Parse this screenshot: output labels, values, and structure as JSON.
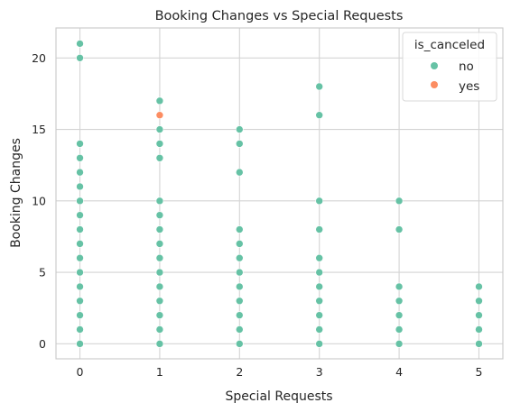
{
  "chart_data": {
    "type": "scatter",
    "title": "Booking Changes vs Special Requests",
    "xlabel": "Special Requests",
    "ylabel": "Booking Changes",
    "xlim": [
      -0.3,
      5.3
    ],
    "ylim": [
      -1.05,
      22.1
    ],
    "xticks": [
      0,
      1,
      2,
      3,
      4,
      5
    ],
    "yticks": [
      0,
      5,
      10,
      15,
      20
    ],
    "grid": true,
    "legend": {
      "title": "is_canceled",
      "placement": "top-right"
    },
    "series": [
      {
        "name": "no",
        "color": "#66c2a5",
        "points": [
          [
            0,
            0
          ],
          [
            0,
            1
          ],
          [
            0,
            2
          ],
          [
            0,
            3
          ],
          [
            0,
            4
          ],
          [
            0,
            5
          ],
          [
            0,
            6
          ],
          [
            0,
            7
          ],
          [
            0,
            8
          ],
          [
            0,
            9
          ],
          [
            0,
            10
          ],
          [
            0,
            11
          ],
          [
            0,
            12
          ],
          [
            0,
            13
          ],
          [
            0,
            14
          ],
          [
            0,
            20
          ],
          [
            0,
            21
          ],
          [
            1,
            0
          ],
          [
            1,
            1
          ],
          [
            1,
            2
          ],
          [
            1,
            3
          ],
          [
            1,
            4
          ],
          [
            1,
            5
          ],
          [
            1,
            6
          ],
          [
            1,
            7
          ],
          [
            1,
            8
          ],
          [
            1,
            9
          ],
          [
            1,
            10
          ],
          [
            1,
            13
          ],
          [
            1,
            14
          ],
          [
            1,
            15
          ],
          [
            1,
            17
          ],
          [
            2,
            0
          ],
          [
            2,
            1
          ],
          [
            2,
            2
          ],
          [
            2,
            3
          ],
          [
            2,
            4
          ],
          [
            2,
            5
          ],
          [
            2,
            6
          ],
          [
            2,
            7
          ],
          [
            2,
            8
          ],
          [
            2,
            12
          ],
          [
            2,
            14
          ],
          [
            2,
            15
          ],
          [
            3,
            0
          ],
          [
            3,
            1
          ],
          [
            3,
            2
          ],
          [
            3,
            3
          ],
          [
            3,
            4
          ],
          [
            3,
            5
          ],
          [
            3,
            6
          ],
          [
            3,
            8
          ],
          [
            3,
            10
          ],
          [
            3,
            16
          ],
          [
            3,
            18
          ],
          [
            4,
            0
          ],
          [
            4,
            1
          ],
          [
            4,
            2
          ],
          [
            4,
            3
          ],
          [
            4,
            4
          ],
          [
            4,
            8
          ],
          [
            4,
            10
          ],
          [
            5,
            0
          ],
          [
            5,
            1
          ],
          [
            5,
            2
          ],
          [
            5,
            3
          ],
          [
            5,
            4
          ]
        ]
      },
      {
        "name": "yes",
        "color": "#fc8d62",
        "points": [
          [
            1,
            16
          ]
        ]
      }
    ]
  }
}
